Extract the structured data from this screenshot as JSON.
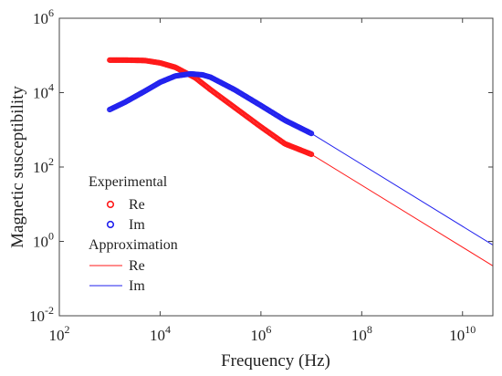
{
  "chart_data": {
    "type": "line",
    "xlabel": "Frequency (Hz)",
    "ylabel": "Magnetic susceptibility",
    "xscale": "log",
    "yscale": "log",
    "xlim": [
      100,
      40000000000
    ],
    "ylim": [
      0.01,
      1000000
    ],
    "x_ticks": [
      {
        "base": "10",
        "exp": "2",
        "value": 100
      },
      {
        "base": "10",
        "exp": "4",
        "value": 10000
      },
      {
        "base": "10",
        "exp": "6",
        "value": 1000000
      },
      {
        "base": "10",
        "exp": "8",
        "value": 100000000
      },
      {
        "base": "10",
        "exp": "10",
        "value": 10000000000
      }
    ],
    "y_ticks": [
      {
        "base": "10",
        "exp": "-2",
        "value": 0.01
      },
      {
        "base": "10",
        "exp": "0",
        "value": 1
      },
      {
        "base": "10",
        "exp": "2",
        "value": 100
      },
      {
        "base": "10",
        "exp": "4",
        "value": 10000
      },
      {
        "base": "10",
        "exp": "6",
        "value": 1000000
      }
    ],
    "grid": false,
    "legend_position": "lower-left",
    "legend": {
      "experimental_title": "Experimental",
      "approximation_title": "Approximation",
      "entries": {
        "exp_re": "Re",
        "exp_im": "Im",
        "approx_re": "Re",
        "approx_im": "Im"
      }
    },
    "series": [
      {
        "key": "exp_re",
        "name": "Re",
        "group": "Experimental",
        "kind": "markers",
        "color": "#ff1a1a",
        "x": [
          1000,
          2000,
          5000,
          10000,
          20000,
          50000,
          100000,
          300000,
          1000000,
          3000000,
          10000000
        ],
        "y": [
          75000,
          75000,
          73000,
          63000,
          48000,
          25000,
          12000,
          4000,
          1200,
          420,
          220
        ]
      },
      {
        "key": "exp_im",
        "name": "Im",
        "group": "Experimental",
        "kind": "markers",
        "color": "#2222ee",
        "x": [
          1000,
          2000,
          5000,
          10000,
          20000,
          40000,
          70000,
          100000,
          300000,
          1000000,
          3000000,
          10000000
        ],
        "y": [
          3500,
          5500,
          11000,
          19000,
          28000,
          32000,
          30000,
          26000,
          12000,
          4500,
          1800,
          800
        ]
      },
      {
        "key": "approx_re",
        "name": "Re",
        "group": "Approximation",
        "kind": "line",
        "color": "#ff1a1a",
        "x": [
          10000000,
          40000000000
        ],
        "y": [
          220,
          0.22
        ]
      },
      {
        "key": "approx_im",
        "name": "Im",
        "group": "Approximation",
        "kind": "line",
        "color": "#2222ee",
        "x": [
          10000000,
          40000000000
        ],
        "y": [
          800,
          0.8
        ]
      }
    ]
  }
}
